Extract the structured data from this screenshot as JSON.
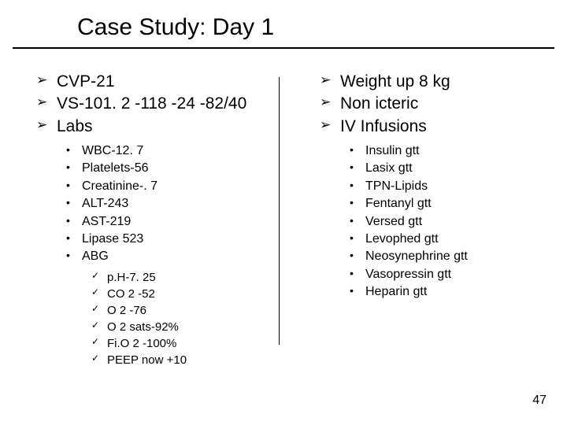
{
  "title": "Case Study: Day 1",
  "page_number": "47",
  "colors": {
    "text": "#000000",
    "background": "#ffffff",
    "rule": "#000000"
  },
  "left": {
    "items": [
      {
        "label": "CVP-21"
      },
      {
        "label": "VS-101. 2 -118 -24 -82/40"
      },
      {
        "label": "Labs",
        "children": [
          {
            "label": "WBC-12. 7"
          },
          {
            "label": "Platelets-56"
          },
          {
            "label": "Creatinine-. 7"
          },
          {
            "label": "ALT-243"
          },
          {
            "label": "AST-219"
          },
          {
            "label": "Lipase 523"
          },
          {
            "label": "ABG",
            "children": [
              {
                "label": "p.H-7. 25"
              },
              {
                "label": "CO 2 -52"
              },
              {
                "label": "O 2 -76"
              },
              {
                "label": "O 2 sats-92%"
              },
              {
                "label": "Fi.O 2 -100%"
              },
              {
                "label": "PEEP now +10"
              }
            ]
          }
        ]
      }
    ]
  },
  "right": {
    "items": [
      {
        "label": "Weight up 8 kg"
      },
      {
        "label": "Non icteric"
      },
      {
        "label": "IV Infusions",
        "children": [
          {
            "label": "Insulin gtt"
          },
          {
            "label": "Lasix gtt"
          },
          {
            "label": "TPN-Lipids"
          },
          {
            "label": "Fentanyl gtt"
          },
          {
            "label": "Versed gtt"
          },
          {
            "label": "Levophed gtt"
          },
          {
            "label": "Neosynephrine gtt"
          },
          {
            "label": "Vasopressin gtt"
          },
          {
            "label": "Heparin gtt"
          }
        ]
      }
    ]
  }
}
